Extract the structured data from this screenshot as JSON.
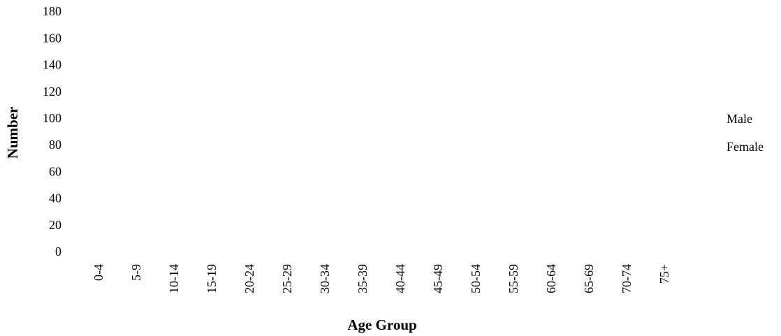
{
  "chart_data": {
    "type": "bar",
    "x_label": "Age Group",
    "y_label": "Number",
    "categories": [
      "0-4",
      "5-9",
      "10-14",
      "15-19",
      "20-24",
      "25-29",
      "30-34",
      "35-39",
      "40-44",
      "45-49",
      "50-54",
      "55-59",
      "60-64",
      "65-69",
      "70-74",
      "75+"
    ],
    "series": [
      {
        "name": "Male",
        "color": "#ffffff",
        "values": [
          null,
          null,
          null,
          null,
          null,
          null,
          null,
          null,
          null,
          null,
          null,
          null,
          null,
          null,
          null,
          null
        ]
      },
      {
        "name": "Female",
        "color": "#ffffff",
        "values": [
          null,
          null,
          null,
          null,
          null,
          null,
          null,
          null,
          null,
          null,
          null,
          null,
          null,
          null,
          null,
          null
        ]
      }
    ],
    "ylim": [
      0,
      180
    ],
    "yticks": [
      0,
      20,
      40,
      60,
      80,
      100,
      120,
      140,
      160,
      180
    ],
    "grid": false,
    "legend": "right"
  }
}
